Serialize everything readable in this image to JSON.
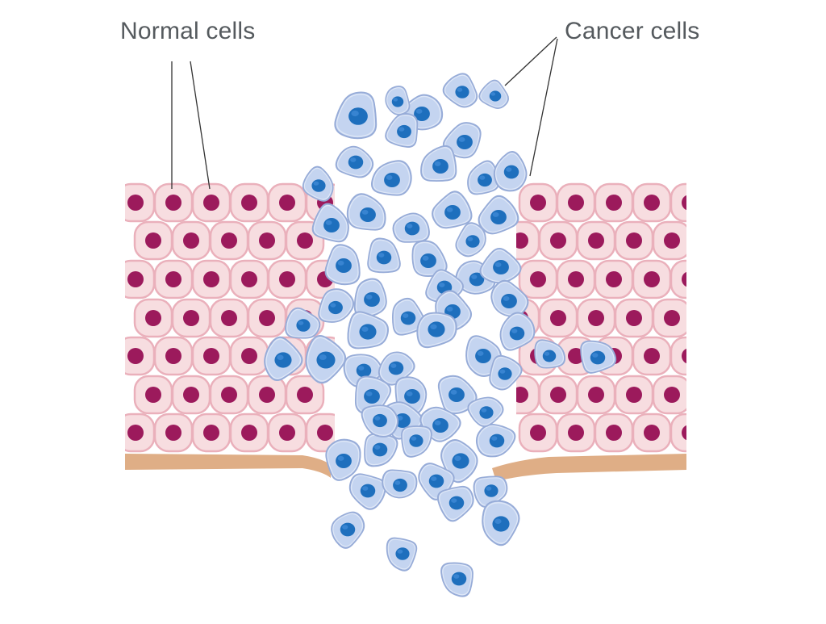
{
  "labels": {
    "normal_cells": "Normal cells",
    "cancer_cells": "Cancer cells"
  },
  "colors": {
    "normal_cell_fill": "#f7dde0",
    "normal_cell_border": "#eab0bb",
    "normal_nucleus": "#9c1a5c",
    "cancer_cell_fill": "#c4d4f0",
    "cancer_cell_border": "#97acd8",
    "cancer_nucleus": "#1e6fbd",
    "basement_membrane": "#dfae86",
    "label_text": "#555a5e",
    "leader_line": "#333333"
  }
}
